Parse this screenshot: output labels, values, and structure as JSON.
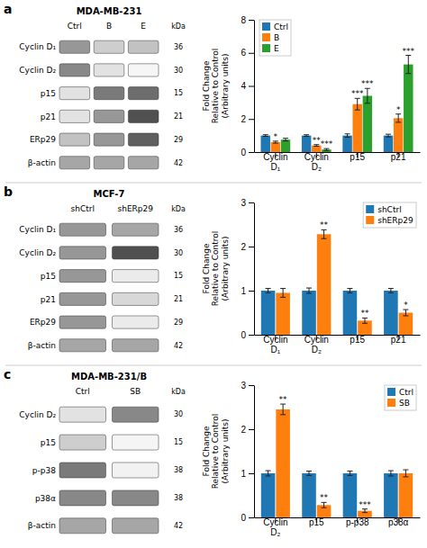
{
  "chart_data": [
    {
      "type": "heatmap",
      "panel_label": "a",
      "title": "MDA-MB-231",
      "categories": [
        "Ctrl",
        "B",
        "E"
      ],
      "annotations": [
        "kDa"
      ],
      "series": [
        {
          "name": "Cyclin D₁",
          "kda": 36,
          "values": [
            0.5,
            0.3,
            0.35
          ]
        },
        {
          "name": "Cyclin D₂",
          "kda": 30,
          "values": [
            0.55,
            0.2,
            0.07
          ]
        },
        {
          "name": "p15",
          "kda": 15,
          "values": [
            0.2,
            0.6,
            0.65
          ]
        },
        {
          "name": "p21",
          "kda": 21,
          "values": [
            0.2,
            0.5,
            0.75
          ]
        },
        {
          "name": "ERp29",
          "kda": 29,
          "values": [
            0.35,
            0.5,
            0.7
          ]
        },
        {
          "name": "β-actin",
          "kda": 42,
          "values": [
            0.45,
            0.45,
            0.45
          ]
        }
      ]
    },
    {
      "type": "bar",
      "categories": [
        "Cyclin\nD₁",
        "Cyclin\nD₂",
        "p15",
        "p21"
      ],
      "ylabel": "Fold Change\nRelative to Control\n(Arbitrary units)",
      "ylim": [
        0,
        8
      ],
      "yticks": [
        0,
        2,
        4,
        6,
        8
      ],
      "grid": false,
      "legend": "upper left",
      "series": [
        {
          "name": "Ctrl",
          "values": [
            1.0,
            1.0,
            1.0,
            1.0
          ],
          "errors": [
            0.05,
            0.05,
            0.1,
            0.08
          ]
        },
        {
          "name": "B",
          "values": [
            0.6,
            0.4,
            2.9,
            2.05
          ],
          "errors": [
            0.06,
            0.05,
            0.35,
            0.25
          ],
          "annotations": [
            "*",
            "**",
            "***",
            "*"
          ]
        },
        {
          "name": "E",
          "values": [
            0.75,
            0.15,
            3.4,
            5.3
          ],
          "errors": [
            0.08,
            0.06,
            0.45,
            0.55
          ],
          "annotations": [
            null,
            "***",
            "***",
            "***"
          ]
        }
      ]
    },
    {
      "type": "heatmap",
      "panel_label": "b",
      "title": "MCF-7",
      "categories": [
        "shCtrl",
        "shERp29"
      ],
      "annotations": [
        "kDa"
      ],
      "series": [
        {
          "name": "Cyclin D₁",
          "kda": 36,
          "values": [
            0.5,
            0.45
          ]
        },
        {
          "name": "Cyclin D₂",
          "kda": 30,
          "values": [
            0.5,
            0.75
          ]
        },
        {
          "name": "p15",
          "kda": 15,
          "values": [
            0.5,
            0.15
          ]
        },
        {
          "name": "p21",
          "kda": 21,
          "values": [
            0.5,
            0.25
          ]
        },
        {
          "name": "ERp29",
          "kda": 29,
          "values": [
            0.5,
            0.15
          ]
        },
        {
          "name": "β-actin",
          "kda": 42,
          "values": [
            0.45,
            0.45
          ]
        }
      ]
    },
    {
      "type": "bar",
      "categories": [
        "Cyclin\nD₁",
        "Cyclin\nD₂",
        "p15",
        "p21"
      ],
      "ylabel": "Fold Change\nRelative to Control\n(Arbitrary units)",
      "ylim": [
        0,
        3
      ],
      "yticks": [
        0,
        1,
        2,
        3
      ],
      "grid": false,
      "legend": "upper right",
      "series": [
        {
          "name": "shCtrl",
          "values": [
            1.0,
            1.0,
            1.0,
            1.0
          ],
          "errors": [
            0.05,
            0.06,
            0.05,
            0.05
          ]
        },
        {
          "name": "shERp29",
          "values": [
            0.95,
            2.28,
            0.32,
            0.5
          ],
          "errors": [
            0.1,
            0.1,
            0.06,
            0.07
          ],
          "annotations": [
            null,
            "**",
            "**",
            "*"
          ]
        }
      ]
    },
    {
      "type": "heatmap",
      "panel_label": "c",
      "title": "MDA-MB-231/B",
      "categories": [
        "Ctrl",
        "SB"
      ],
      "annotations": [
        "kDa"
      ],
      "series": [
        {
          "name": "Cyclin D₂",
          "kda": 30,
          "values": [
            0.2,
            0.55
          ]
        },
        {
          "name": "p15",
          "kda": 15,
          "values": [
            0.3,
            0.08
          ]
        },
        {
          "name": "p-p38",
          "kda": 38,
          "values": [
            0.6,
            0.1
          ]
        },
        {
          "name": "p38α",
          "kda": 38,
          "values": [
            0.55,
            0.55
          ]
        },
        {
          "name": "β-actin",
          "kda": 42,
          "values": [
            0.45,
            0.45
          ]
        }
      ]
    },
    {
      "type": "bar",
      "categories": [
        "Cyclin\nD₂",
        "p15",
        "p-p38",
        "p38α"
      ],
      "ylabel": "Fold Change\nRelative to Control\n(Arbitrary units)",
      "ylim": [
        0,
        3
      ],
      "yticks": [
        0,
        1,
        2,
        3
      ],
      "grid": false,
      "legend": "upper right",
      "series": [
        {
          "name": "Ctrl",
          "values": [
            1.0,
            1.0,
            1.0,
            1.0
          ],
          "errors": [
            0.06,
            0.05,
            0.05,
            0.06
          ]
        },
        {
          "name": "SB",
          "values": [
            2.45,
            0.28,
            0.15,
            1.0
          ],
          "errors": [
            0.12,
            0.06,
            0.04,
            0.08
          ],
          "annotations": [
            "**",
            "**",
            "***",
            null
          ]
        }
      ]
    }
  ]
}
